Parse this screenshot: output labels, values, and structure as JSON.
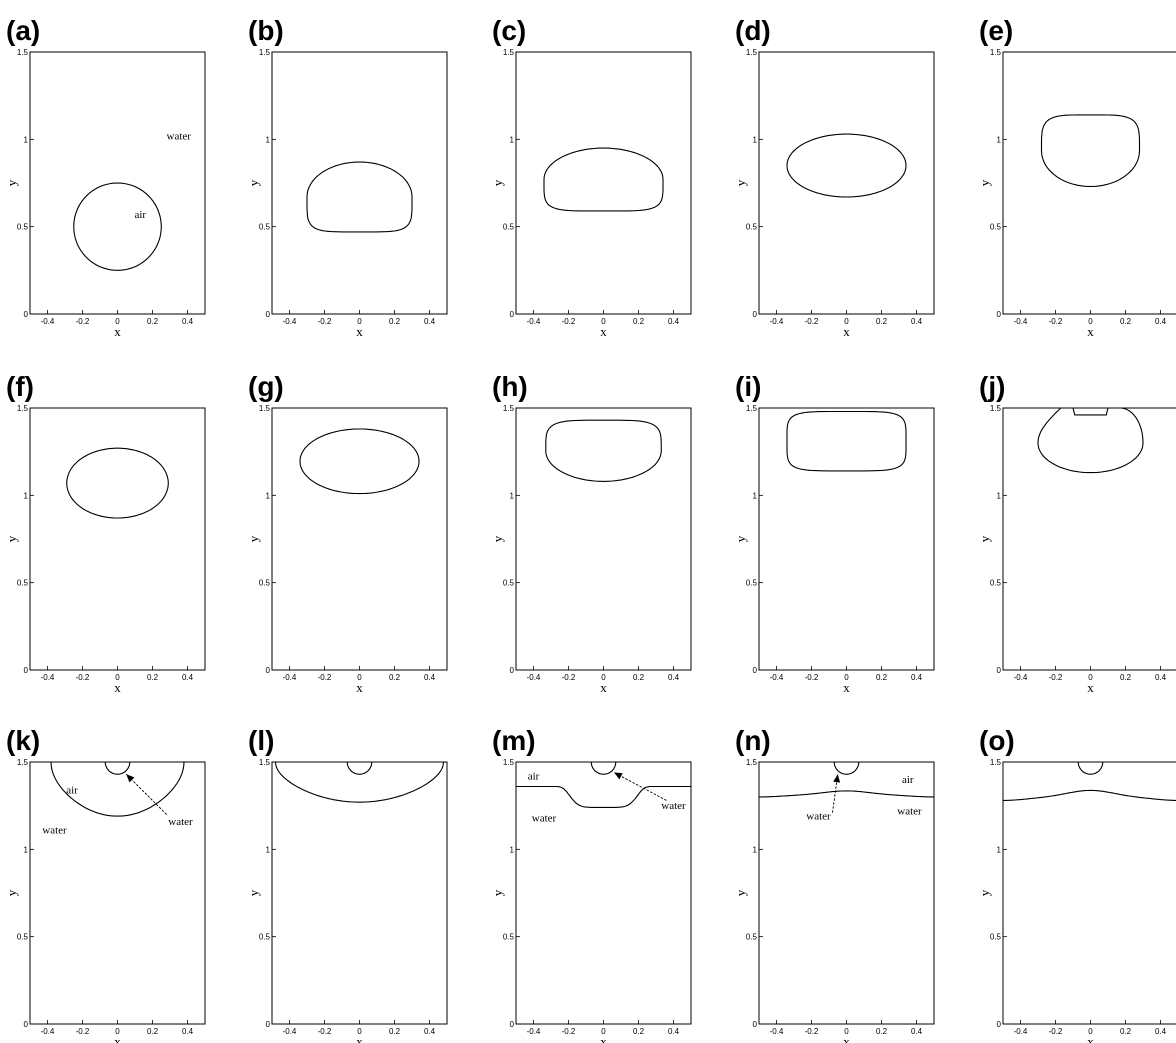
{
  "figure": {
    "xticks": [
      "-0.4",
      "-0.2",
      "0",
      "0.2",
      "0.4"
    ],
    "yticks": [
      "0",
      "0.5",
      "1",
      "1.5"
    ]
  },
  "chart_data": [
    {
      "panel": "(a)",
      "type": "line",
      "xlabel": "x",
      "ylabel": "y",
      "xlim": [
        -0.5,
        0.5
      ],
      "ylim": [
        0,
        1.5
      ],
      "interface": {
        "shape": "circle",
        "center": [
          0,
          0.5
        ],
        "radius": 0.25
      },
      "annotations": [
        {
          "text": "air",
          "at": [
            0.13,
            0.55
          ]
        },
        {
          "text": "water",
          "at": [
            0.35,
            1.0
          ]
        }
      ]
    },
    {
      "panel": "(b)",
      "type": "line",
      "xlabel": "x",
      "ylabel": "y",
      "xlim": [
        -0.5,
        0.5
      ],
      "ylim": [
        0,
        1.5
      ],
      "interface": {
        "shape": "cap",
        "top": 0.87,
        "bottom": 0.47,
        "half_width": 0.3
      }
    },
    {
      "panel": "(c)",
      "type": "line",
      "xlabel": "x",
      "ylabel": "y",
      "xlim": [
        -0.5,
        0.5
      ],
      "ylim": [
        0,
        1.5
      ],
      "interface": {
        "shape": "cap",
        "top": 0.95,
        "bottom": 0.59,
        "half_width": 0.34
      }
    },
    {
      "panel": "(d)",
      "type": "line",
      "xlabel": "x",
      "ylabel": "y",
      "xlim": [
        -0.5,
        0.5
      ],
      "ylim": [
        0,
        1.5
      ],
      "interface": {
        "shape": "ellipse",
        "top": 1.03,
        "bottom": 0.67,
        "half_width": 0.34
      }
    },
    {
      "panel": "(e)",
      "type": "line",
      "xlabel": "x",
      "ylabel": "y",
      "xlim": [
        -0.5,
        0.5
      ],
      "ylim": [
        0,
        1.5
      ],
      "interface": {
        "shape": "inverted-cap",
        "top": 1.14,
        "bottom": 0.73,
        "half_width": 0.28
      }
    },
    {
      "panel": "(f)",
      "type": "line",
      "xlabel": "x",
      "ylabel": "y",
      "xlim": [
        -0.5,
        0.5
      ],
      "ylim": [
        0,
        1.5
      ],
      "interface": {
        "shape": "ellipse",
        "top": 1.27,
        "bottom": 0.87,
        "half_width": 0.29
      }
    },
    {
      "panel": "(g)",
      "type": "line",
      "xlabel": "x",
      "ylabel": "y",
      "xlim": [
        -0.5,
        0.5
      ],
      "ylim": [
        0,
        1.5
      ],
      "interface": {
        "shape": "ellipse",
        "top": 1.38,
        "bottom": 1.01,
        "half_width": 0.34
      }
    },
    {
      "panel": "(h)",
      "type": "line",
      "xlabel": "x",
      "ylabel": "y",
      "xlim": [
        -0.5,
        0.5
      ],
      "ylim": [
        0,
        1.5
      ],
      "interface": {
        "shape": "inverted-cap",
        "top": 1.43,
        "bottom": 1.08,
        "half_width": 0.33
      }
    },
    {
      "panel": "(i)",
      "type": "line",
      "xlabel": "x",
      "ylabel": "y",
      "xlim": [
        -0.5,
        0.5
      ],
      "ylim": [
        0,
        1.5
      ],
      "interface": {
        "shape": "box",
        "top": 1.48,
        "bottom": 1.14,
        "half_width": 0.34
      }
    },
    {
      "panel": "(j)",
      "type": "line",
      "xlabel": "x",
      "ylabel": "y",
      "xlim": [
        -0.5,
        0.5
      ],
      "ylim": [
        0,
        1.5
      ],
      "interface": {
        "shape": "bell",
        "top": 1.5,
        "bottom": 1.13,
        "half_width": 0.3
      },
      "droplet": {
        "shape": "top-notch",
        "half_width": 0.1,
        "bottom": 1.46
      }
    },
    {
      "panel": "(k)",
      "type": "line",
      "xlabel": "x",
      "ylabel": "y",
      "xlim": [
        -0.5,
        0.5
      ],
      "ylim": [
        0,
        1.5
      ],
      "interface": {
        "shape": "open-cup",
        "bottom": 1.19,
        "half_width": 0.38
      },
      "droplet": {
        "shape": "hanging-drop",
        "center_x": 0,
        "radius": 0.07
      },
      "annotations": [
        {
          "text": "air",
          "at": [
            -0.26,
            1.32
          ]
        },
        {
          "text": "water",
          "at": [
            -0.36,
            1.09
          ]
        },
        {
          "text": "water",
          "at": [
            0.36,
            1.14
          ]
        }
      ],
      "arrow": {
        "from": [
          0.28,
          1.2
        ],
        "to": [
          0.05,
          1.43
        ]
      }
    },
    {
      "panel": "(l)",
      "type": "line",
      "xlabel": "x",
      "ylabel": "y",
      "xlim": [
        -0.5,
        0.5
      ],
      "ylim": [
        0,
        1.5
      ],
      "interface": {
        "shape": "open-cup",
        "bottom": 1.27,
        "half_width": 0.48
      },
      "droplet": {
        "shape": "hanging-drop",
        "center_x": 0,
        "radius": 0.07
      }
    },
    {
      "panel": "(m)",
      "type": "line",
      "xlabel": "x",
      "ylabel": "y",
      "xlim": [
        -0.5,
        0.5
      ],
      "ylim": [
        0,
        1.5
      ],
      "interface": {
        "shape": "trough",
        "edge": 1.36,
        "center": 1.24
      },
      "droplet": {
        "shape": "hanging-drop",
        "center_x": 0,
        "radius": 0.07
      },
      "annotations": [
        {
          "text": "air",
          "at": [
            -0.4,
            1.4
          ]
        },
        {
          "text": "water",
          "at": [
            -0.34,
            1.16
          ]
        },
        {
          "text": "water",
          "at": [
            0.4,
            1.23
          ]
        }
      ],
      "arrow": {
        "from": [
          0.36,
          1.28
        ],
        "to": [
          0.06,
          1.44
        ]
      }
    },
    {
      "panel": "(n)",
      "type": "line",
      "xlabel": "x",
      "ylabel": "y",
      "xlim": [
        -0.5,
        0.5
      ],
      "ylim": [
        0,
        1.5
      ],
      "interface": {
        "shape": "crest",
        "edge": 1.3,
        "center": 1.33
      },
      "droplet": {
        "shape": "hanging-drop",
        "center_x": 0,
        "radius": 0.07
      },
      "annotations": [
        {
          "text": "air",
          "at": [
            0.35,
            1.38
          ]
        },
        {
          "text": "water",
          "at": [
            -0.16,
            1.17
          ]
        },
        {
          "text": "water",
          "at": [
            0.36,
            1.2
          ]
        }
      ],
      "arrow": {
        "from": [
          -0.08,
          1.21
        ],
        "to": [
          -0.05,
          1.43
        ]
      }
    },
    {
      "panel": "(o)",
      "type": "line",
      "xlabel": "x",
      "ylabel": "y",
      "xlim": [
        -0.5,
        0.5
      ],
      "ylim": [
        0,
        1.5
      ],
      "interface": {
        "shape": "crest",
        "edge": 1.28,
        "center": 1.33
      },
      "droplet": {
        "shape": "hanging-drop",
        "center_x": 0,
        "radius": 0.07
      }
    }
  ]
}
